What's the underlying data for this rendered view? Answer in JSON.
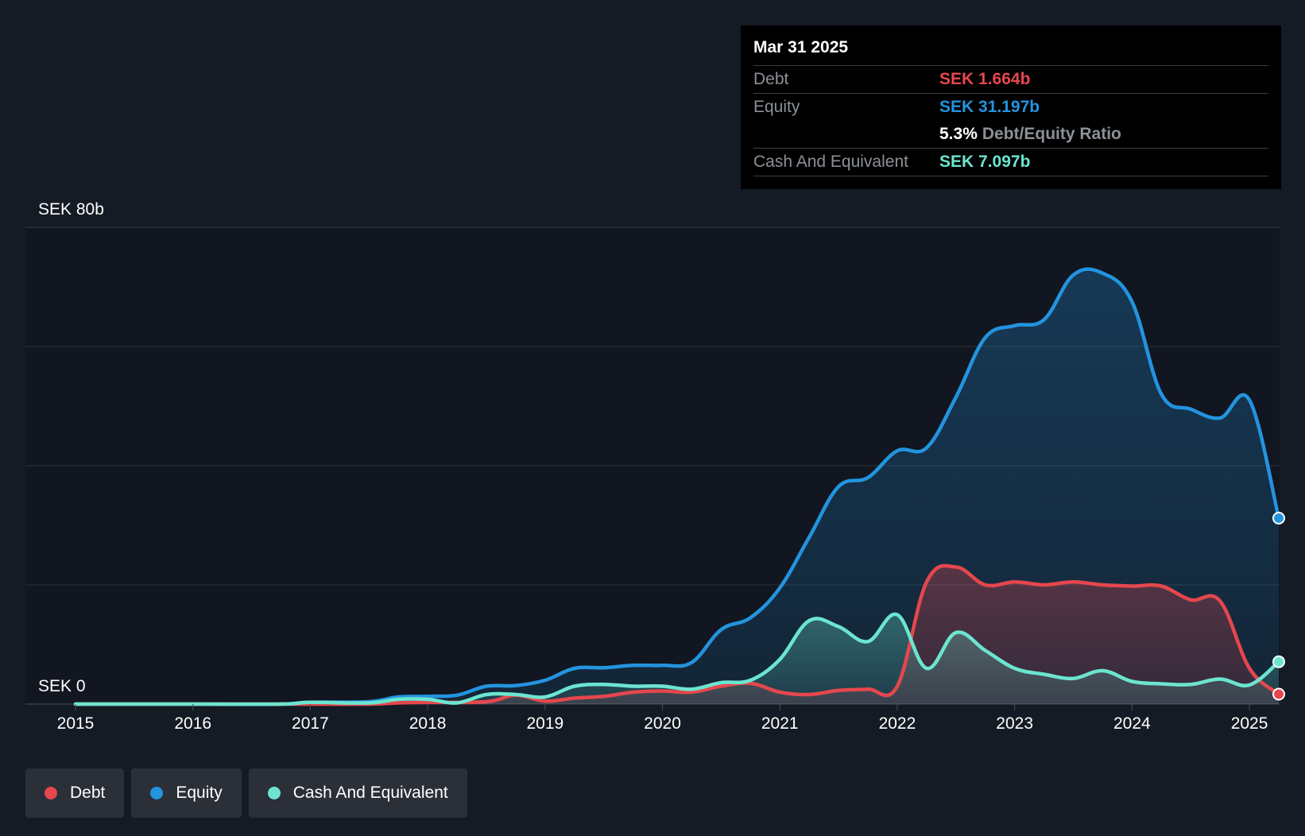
{
  "colors": {
    "background": "#151b24",
    "plot_background": "#111620",
    "debt": "#e5474d",
    "equity": "#2394df",
    "cash": "#6ce5d0",
    "grid": "#3a3f47",
    "muted_text": "#8c9097"
  },
  "tooltip": {
    "date": "Mar 31 2025",
    "rows": {
      "debt": {
        "label": "Debt",
        "value": "SEK 1.664b"
      },
      "equity": {
        "label": "Equity",
        "value": "SEK 31.197b"
      },
      "ratio": {
        "pct": "5.3%",
        "text": "Debt/Equity Ratio"
      },
      "cash": {
        "label": "Cash And Equivalent",
        "value": "SEK 7.097b"
      }
    }
  },
  "legend": {
    "debt": "Debt",
    "equity": "Equity",
    "cash": "Cash And Equivalent"
  },
  "chart_data": {
    "type": "area",
    "title": "",
    "xlabel": "",
    "ylabel": "",
    "y_top_label": "SEK 80b",
    "y_bottom_label": "SEK 0",
    "ylim": [
      0,
      80
    ],
    "xlim": [
      2015.0,
      2025.25
    ],
    "x_ticks": [
      "2015",
      "2016",
      "2017",
      "2018",
      "2019",
      "2020",
      "2021",
      "2022",
      "2023",
      "2024",
      "2025"
    ],
    "y_gridlines": [
      0,
      20,
      40,
      60,
      80
    ],
    "series": [
      {
        "name": "Equity",
        "unit": "SEK b",
        "points": [
          [
            2015.0,
            0.0
          ],
          [
            2016.0,
            0.0
          ],
          [
            2016.75,
            0.0
          ],
          [
            2017.0,
            0.3
          ],
          [
            2017.5,
            0.4
          ],
          [
            2017.75,
            1.2
          ],
          [
            2018.0,
            1.3
          ],
          [
            2018.25,
            1.5
          ],
          [
            2018.5,
            3.0
          ],
          [
            2018.75,
            3.1
          ],
          [
            2019.0,
            4.0
          ],
          [
            2019.25,
            6.0
          ],
          [
            2019.5,
            6.1
          ],
          [
            2019.75,
            6.5
          ],
          [
            2020.0,
            6.5
          ],
          [
            2020.25,
            7.0
          ],
          [
            2020.5,
            12.5
          ],
          [
            2020.75,
            14.5
          ],
          [
            2021.0,
            19.5
          ],
          [
            2021.25,
            28.0
          ],
          [
            2021.5,
            36.5
          ],
          [
            2021.75,
            38.0
          ],
          [
            2022.0,
            42.5
          ],
          [
            2022.25,
            43.0
          ],
          [
            2022.5,
            51.5
          ],
          [
            2022.75,
            61.5
          ],
          [
            2023.0,
            63.5
          ],
          [
            2023.25,
            64.5
          ],
          [
            2023.5,
            72.0
          ],
          [
            2023.75,
            72.3
          ],
          [
            2024.0,
            67.5
          ],
          [
            2024.25,
            52.0
          ],
          [
            2024.5,
            49.5
          ],
          [
            2024.75,
            48.0
          ],
          [
            2025.0,
            51.0
          ],
          [
            2025.25,
            31.197
          ]
        ]
      },
      {
        "name": "Debt",
        "unit": "SEK b",
        "points": [
          [
            2015.0,
            0.0
          ],
          [
            2016.0,
            0.0
          ],
          [
            2017.0,
            0.0
          ],
          [
            2017.5,
            0.0
          ],
          [
            2017.75,
            0.2
          ],
          [
            2018.0,
            0.3
          ],
          [
            2018.5,
            0.4
          ],
          [
            2018.75,
            1.5
          ],
          [
            2019.0,
            0.5
          ],
          [
            2019.25,
            1.0
          ],
          [
            2019.5,
            1.3
          ],
          [
            2019.75,
            2.0
          ],
          [
            2020.0,
            2.2
          ],
          [
            2020.25,
            2.0
          ],
          [
            2020.5,
            3.0
          ],
          [
            2020.75,
            3.5
          ],
          [
            2021.0,
            2.0
          ],
          [
            2021.25,
            1.6
          ],
          [
            2021.5,
            2.3
          ],
          [
            2021.75,
            2.5
          ],
          [
            2022.0,
            3.0
          ],
          [
            2022.25,
            20.5
          ],
          [
            2022.5,
            23.0
          ],
          [
            2022.75,
            20.0
          ],
          [
            2023.0,
            20.5
          ],
          [
            2023.25,
            20.0
          ],
          [
            2023.5,
            20.5
          ],
          [
            2023.75,
            20.0
          ],
          [
            2024.0,
            19.8
          ],
          [
            2024.25,
            19.8
          ],
          [
            2024.5,
            17.5
          ],
          [
            2024.75,
            17.3
          ],
          [
            2025.0,
            6.0
          ],
          [
            2025.25,
            1.664
          ]
        ]
      },
      {
        "name": "Cash And Equivalent",
        "unit": "SEK b",
        "points": [
          [
            2015.0,
            0.0
          ],
          [
            2016.0,
            0.0
          ],
          [
            2016.75,
            0.0
          ],
          [
            2017.0,
            0.3
          ],
          [
            2017.5,
            0.2
          ],
          [
            2017.75,
            0.8
          ],
          [
            2018.0,
            0.8
          ],
          [
            2018.25,
            0.2
          ],
          [
            2018.5,
            1.6
          ],
          [
            2018.75,
            1.6
          ],
          [
            2019.0,
            1.2
          ],
          [
            2019.25,
            3.0
          ],
          [
            2019.5,
            3.3
          ],
          [
            2019.75,
            3.0
          ],
          [
            2020.0,
            3.0
          ],
          [
            2020.25,
            2.5
          ],
          [
            2020.5,
            3.6
          ],
          [
            2020.75,
            4.0
          ],
          [
            2021.0,
            7.5
          ],
          [
            2021.25,
            14.0
          ],
          [
            2021.5,
            13.0
          ],
          [
            2021.75,
            10.5
          ],
          [
            2022.0,
            15.0
          ],
          [
            2022.25,
            6.0
          ],
          [
            2022.5,
            12.0
          ],
          [
            2022.75,
            9.0
          ],
          [
            2023.0,
            6.0
          ],
          [
            2023.25,
            5.0
          ],
          [
            2023.5,
            4.3
          ],
          [
            2023.75,
            5.6
          ],
          [
            2024.0,
            3.8
          ],
          [
            2024.25,
            3.4
          ],
          [
            2024.5,
            3.3
          ],
          [
            2024.75,
            4.2
          ],
          [
            2025.0,
            3.2
          ],
          [
            2025.25,
            7.097
          ]
        ]
      }
    ],
    "highlight_x": 2025.25
  }
}
